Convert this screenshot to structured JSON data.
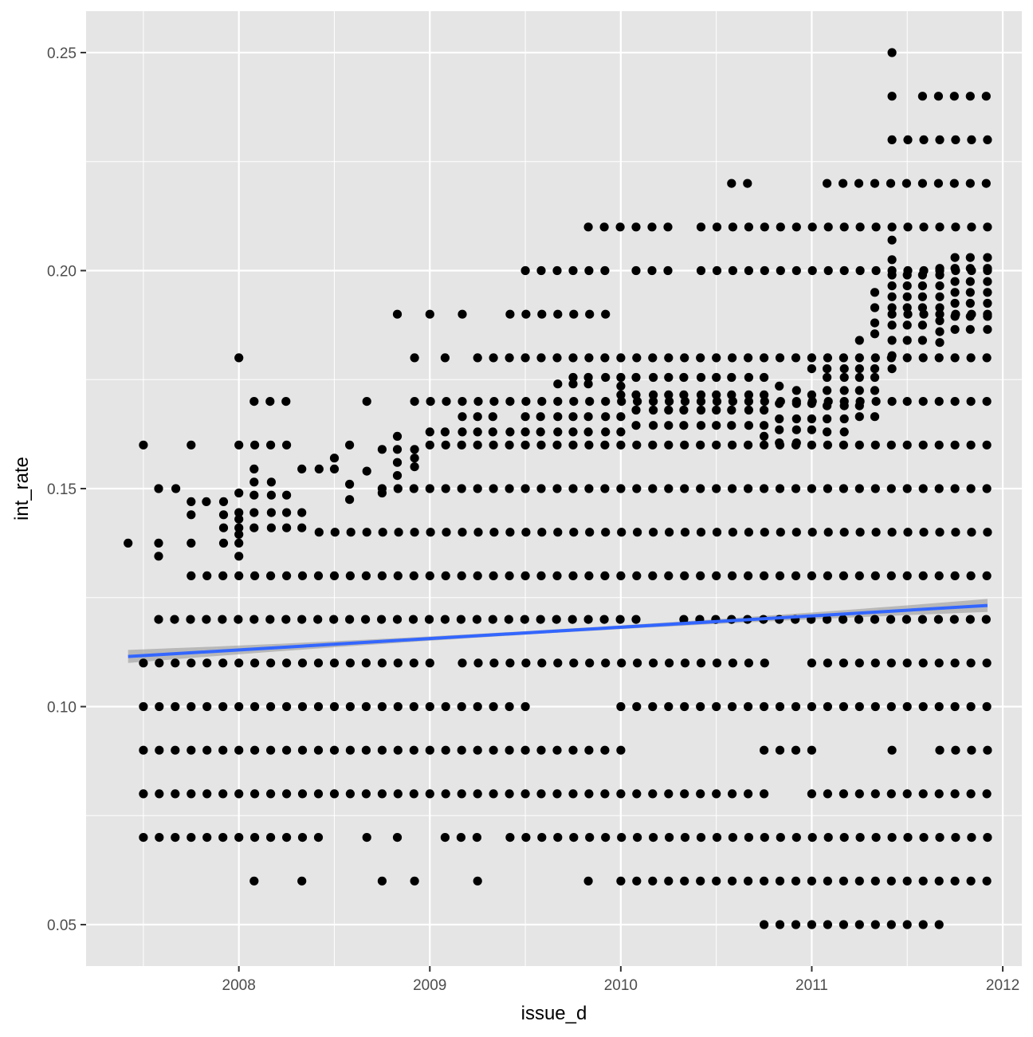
{
  "chart_data": {
    "type": "scatter",
    "xlabel": "issue_d",
    "ylabel": "int_rate",
    "xlim": [
      2007.2,
      2012.1
    ],
    "ylim": [
      0.0405,
      0.2595
    ],
    "x_ticks": [
      2008,
      2009,
      2010,
      2011,
      2012
    ],
    "x_tick_labels": [
      "2008",
      "2009",
      "2010",
      "2011",
      "2012"
    ],
    "y_ticks": [
      0.05,
      0.1,
      0.15,
      0.2,
      0.25
    ],
    "y_tick_labels": [
      "0.05",
      "0.10",
      "0.15",
      "0.20",
      "0.25"
    ],
    "grid": true,
    "point_color": "#000000",
    "panel_background": "#e5e5e5",
    "grid_color": "#ffffff",
    "trend_line": {
      "method": "linear fit with confidence band",
      "color": "#3366ff",
      "band_color": "#999999",
      "x": [
        2007.42,
        2011.92
      ],
      "y": [
        0.1115,
        0.1232
      ]
    },
    "points": {
      "note_x_unit": "decimal year",
      "row_rates": [
        0.05,
        0.06,
        0.07,
        0.08,
        0.09,
        0.1,
        0.11,
        0.12,
        0.13,
        0.14,
        0.15,
        0.16,
        0.17,
        0.18,
        0.19,
        0.2,
        0.21,
        0.22,
        0.23,
        0.24,
        0.25
      ],
      "x_ranges_by_rate": {
        "0.05": [
          [
            2010.75,
            2011.67
          ]
        ],
        "0.06": [
          [
            2008.08,
            2008.08
          ],
          [
            2008.33,
            2008.33
          ],
          [
            2008.75,
            2008.75
          ],
          [
            2008.92,
            2008.92
          ],
          [
            2009.25,
            2009.25
          ],
          [
            2009.83,
            2009.83
          ],
          [
            2010.0,
            2011.92
          ]
        ],
        "0.07": [
          [
            2007.5,
            2008.42
          ],
          [
            2008.67,
            2008.67
          ],
          [
            2008.83,
            2008.83
          ],
          [
            2009.08,
            2009.25
          ],
          [
            2009.42,
            2011.92
          ]
        ],
        "0.08": [
          [
            2007.5,
            2010.75
          ],
          [
            2011.0,
            2011.92
          ]
        ],
        "0.09": [
          [
            2007.5,
            2010.0
          ],
          [
            2010.75,
            2011.0
          ],
          [
            2011.42,
            2011.42
          ],
          [
            2011.67,
            2011.92
          ]
        ],
        "0.10": [
          [
            2007.5,
            2009.58
          ],
          [
            2010.0,
            2011.92
          ]
        ],
        "0.11": [
          [
            2007.5,
            2009.0
          ],
          [
            2009.17,
            2010.83
          ],
          [
            2011.0,
            2011.92
          ]
        ],
        "0.12": [
          [
            2007.58,
            2010.08
          ],
          [
            2010.33,
            2011.92
          ]
        ],
        "0.13": [
          [
            2007.75,
            2011.92
          ]
        ],
        "0.14": [
          [
            2008.42,
            2011.92
          ]
        ],
        "0.15": [
          [
            2008.75,
            2011.92
          ]
        ],
        "0.16": [
          [
            2007.5,
            2007.5
          ],
          [
            2007.75,
            2007.75
          ],
          [
            2008.0,
            2008.25
          ],
          [
            2008.58,
            2008.58
          ],
          [
            2009.0,
            2011.92
          ]
        ],
        "0.17": [
          [
            2008.08,
            2008.25
          ],
          [
            2008.67,
            2008.67
          ],
          [
            2008.92,
            2011.42
          ],
          [
            2011.5,
            2011.92
          ]
        ],
        "0.18": [
          [
            2008.0,
            2008.0
          ],
          [
            2008.92,
            2008.92
          ],
          [
            2009.08,
            2009.08
          ],
          [
            2009.25,
            2011.92
          ]
        ],
        "0.19": [
          [
            2008.83,
            2008.83
          ],
          [
            2009.0,
            2009.0
          ],
          [
            2009.17,
            2009.17
          ],
          [
            2009.42,
            2010.0
          ],
          [
            2011.42,
            2011.92
          ]
        ],
        "0.20": [
          [
            2009.5,
            2009.92
          ],
          [
            2010.08,
            2010.25
          ],
          [
            2010.42,
            2011.92
          ]
        ],
        "0.21": [
          [
            2009.83,
            2010.25
          ],
          [
            2010.42,
            2011.92
          ]
        ],
        "0.22": [
          [
            2010.58,
            2010.67
          ],
          [
            2011.08,
            2011.92
          ]
        ],
        "0.23": [
          [
            2011.42,
            2011.92
          ]
        ],
        "0.24": [
          [
            2011.42,
            2011.42
          ],
          [
            2011.58,
            2011.92
          ]
        ],
        "0.25": [
          [
            2011.42,
            2011.42
          ]
        ]
      },
      "extra_points": [
        {
          "x": 2007.42,
          "y": 0.1375
        },
        {
          "x": 2007.58,
          "y": 0.1375
        },
        {
          "x": 2007.58,
          "y": 0.1345
        },
        {
          "x": 2007.58,
          "y": 0.15
        },
        {
          "x": 2007.67,
          "y": 0.15
        },
        {
          "x": 2007.75,
          "y": 0.1375
        },
        {
          "x": 2007.75,
          "y": 0.144
        },
        {
          "x": 2007.75,
          "y": 0.147
        },
        {
          "x": 2007.83,
          "y": 0.147
        },
        {
          "x": 2007.92,
          "y": 0.147
        },
        {
          "x": 2007.92,
          "y": 0.144
        },
        {
          "x": 2007.92,
          "y": 0.141
        },
        {
          "x": 2007.92,
          "y": 0.1375
        },
        {
          "x": 2008.0,
          "y": 0.1345
        },
        {
          "x": 2008.0,
          "y": 0.1375
        },
        {
          "x": 2008.0,
          "y": 0.1395
        },
        {
          "x": 2008.0,
          "y": 0.141
        },
        {
          "x": 2008.0,
          "y": 0.143
        },
        {
          "x": 2008.0,
          "y": 0.1445
        },
        {
          "x": 2008.0,
          "y": 0.149
        },
        {
          "x": 2008.08,
          "y": 0.141
        },
        {
          "x": 2008.08,
          "y": 0.1445
        },
        {
          "x": 2008.08,
          "y": 0.1485
        },
        {
          "x": 2008.08,
          "y": 0.1515
        },
        {
          "x": 2008.08,
          "y": 0.1545
        },
        {
          "x": 2008.17,
          "y": 0.141
        },
        {
          "x": 2008.17,
          "y": 0.1445
        },
        {
          "x": 2008.17,
          "y": 0.1485
        },
        {
          "x": 2008.17,
          "y": 0.1515
        },
        {
          "x": 2008.25,
          "y": 0.141
        },
        {
          "x": 2008.25,
          "y": 0.1445
        },
        {
          "x": 2008.25,
          "y": 0.1485
        },
        {
          "x": 2008.33,
          "y": 0.141
        },
        {
          "x": 2008.33,
          "y": 0.1445
        },
        {
          "x": 2008.33,
          "y": 0.1545
        },
        {
          "x": 2008.42,
          "y": 0.1545
        },
        {
          "x": 2008.5,
          "y": 0.1545
        },
        {
          "x": 2008.5,
          "y": 0.157
        },
        {
          "x": 2008.58,
          "y": 0.1475
        },
        {
          "x": 2008.58,
          "y": 0.151
        },
        {
          "x": 2008.67,
          "y": 0.154
        },
        {
          "x": 2008.75,
          "y": 0.159
        },
        {
          "x": 2008.75,
          "y": 0.149
        },
        {
          "x": 2008.83,
          "y": 0.159
        },
        {
          "x": 2008.83,
          "y": 0.162
        },
        {
          "x": 2008.83,
          "y": 0.156
        },
        {
          "x": 2008.83,
          "y": 0.153
        },
        {
          "x": 2008.92,
          "y": 0.159
        },
        {
          "x": 2008.92,
          "y": 0.157
        },
        {
          "x": 2008.92,
          "y": 0.155
        },
        {
          "x": 2009.0,
          "y": 0.163
        },
        {
          "x": 2009.08,
          "y": 0.163
        },
        {
          "x": 2009.17,
          "y": 0.163
        },
        {
          "x": 2009.17,
          "y": 0.1665
        },
        {
          "x": 2009.25,
          "y": 0.163
        },
        {
          "x": 2009.25,
          "y": 0.1665
        },
        {
          "x": 2009.33,
          "y": 0.163
        },
        {
          "x": 2009.33,
          "y": 0.1665
        },
        {
          "x": 2009.42,
          "y": 0.163
        },
        {
          "x": 2009.5,
          "y": 0.163
        },
        {
          "x": 2009.5,
          "y": 0.1665
        },
        {
          "x": 2009.58,
          "y": 0.163
        },
        {
          "x": 2009.58,
          "y": 0.1665
        },
        {
          "x": 2009.67,
          "y": 0.163
        },
        {
          "x": 2009.67,
          "y": 0.1665
        },
        {
          "x": 2009.67,
          "y": 0.174
        },
        {
          "x": 2009.75,
          "y": 0.163
        },
        {
          "x": 2009.75,
          "y": 0.1665
        },
        {
          "x": 2009.75,
          "y": 0.1755
        },
        {
          "x": 2009.75,
          "y": 0.174
        },
        {
          "x": 2009.83,
          "y": 0.163
        },
        {
          "x": 2009.83,
          "y": 0.1665
        },
        {
          "x": 2009.83,
          "y": 0.1755
        },
        {
          "x": 2009.83,
          "y": 0.174
        },
        {
          "x": 2009.92,
          "y": 0.163
        },
        {
          "x": 2009.92,
          "y": 0.1665
        },
        {
          "x": 2009.92,
          "y": 0.1755
        },
        {
          "x": 2010.0,
          "y": 0.163
        },
        {
          "x": 2010.0,
          "y": 0.1665
        },
        {
          "x": 2010.0,
          "y": 0.1755
        },
        {
          "x": 2010.0,
          "y": 0.1715
        },
        {
          "x": 2010.0,
          "y": 0.1735
        },
        {
          "x": 2010.08,
          "y": 0.1645
        },
        {
          "x": 2010.08,
          "y": 0.168
        },
        {
          "x": 2010.08,
          "y": 0.1715
        },
        {
          "x": 2010.08,
          "y": 0.1755
        },
        {
          "x": 2010.17,
          "y": 0.1645
        },
        {
          "x": 2010.17,
          "y": 0.168
        },
        {
          "x": 2010.17,
          "y": 0.1715
        },
        {
          "x": 2010.17,
          "y": 0.1755
        },
        {
          "x": 2010.25,
          "y": 0.1645
        },
        {
          "x": 2010.25,
          "y": 0.168
        },
        {
          "x": 2010.25,
          "y": 0.1715
        },
        {
          "x": 2010.25,
          "y": 0.1755
        },
        {
          "x": 2010.33,
          "y": 0.1645
        },
        {
          "x": 2010.33,
          "y": 0.168
        },
        {
          "x": 2010.33,
          "y": 0.1715
        },
        {
          "x": 2010.33,
          "y": 0.1755
        },
        {
          "x": 2010.42,
          "y": 0.1645
        },
        {
          "x": 2010.42,
          "y": 0.168
        },
        {
          "x": 2010.42,
          "y": 0.1715
        },
        {
          "x": 2010.42,
          "y": 0.1755
        },
        {
          "x": 2010.5,
          "y": 0.1645
        },
        {
          "x": 2010.5,
          "y": 0.168
        },
        {
          "x": 2010.5,
          "y": 0.1715
        },
        {
          "x": 2010.5,
          "y": 0.1755
        },
        {
          "x": 2010.58,
          "y": 0.1645
        },
        {
          "x": 2010.58,
          "y": 0.168
        },
        {
          "x": 2010.58,
          "y": 0.1715
        },
        {
          "x": 2010.58,
          "y": 0.1755
        },
        {
          "x": 2010.67,
          "y": 0.1645
        },
        {
          "x": 2010.67,
          "y": 0.168
        },
        {
          "x": 2010.67,
          "y": 0.1715
        },
        {
          "x": 2010.67,
          "y": 0.1755
        },
        {
          "x": 2010.75,
          "y": 0.162
        },
        {
          "x": 2010.75,
          "y": 0.1645
        },
        {
          "x": 2010.75,
          "y": 0.168
        },
        {
          "x": 2010.75,
          "y": 0.1715
        },
        {
          "x": 2010.75,
          "y": 0.1755
        },
        {
          "x": 2010.83,
          "y": 0.1605
        },
        {
          "x": 2010.83,
          "y": 0.1635
        },
        {
          "x": 2010.83,
          "y": 0.166
        },
        {
          "x": 2010.83,
          "y": 0.1695
        },
        {
          "x": 2010.83,
          "y": 0.1735
        },
        {
          "x": 2010.92,
          "y": 0.1605
        },
        {
          "x": 2010.92,
          "y": 0.1635
        },
        {
          "x": 2010.92,
          "y": 0.166
        },
        {
          "x": 2010.92,
          "y": 0.1695
        },
        {
          "x": 2010.92,
          "y": 0.1725
        },
        {
          "x": 2011.0,
          "y": 0.1635
        },
        {
          "x": 2011.0,
          "y": 0.166
        },
        {
          "x": 2011.0,
          "y": 0.1695
        },
        {
          "x": 2011.0,
          "y": 0.1715
        },
        {
          "x": 2011.0,
          "y": 0.1775
        },
        {
          "x": 2011.08,
          "y": 0.163
        },
        {
          "x": 2011.08,
          "y": 0.166
        },
        {
          "x": 2011.08,
          "y": 0.169
        },
        {
          "x": 2011.08,
          "y": 0.1725
        },
        {
          "x": 2011.08,
          "y": 0.1755
        },
        {
          "x": 2011.08,
          "y": 0.1775
        },
        {
          "x": 2011.17,
          "y": 0.163
        },
        {
          "x": 2011.17,
          "y": 0.166
        },
        {
          "x": 2011.17,
          "y": 0.169
        },
        {
          "x": 2011.17,
          "y": 0.1725
        },
        {
          "x": 2011.17,
          "y": 0.1755
        },
        {
          "x": 2011.17,
          "y": 0.1775
        },
        {
          "x": 2011.25,
          "y": 0.1665
        },
        {
          "x": 2011.25,
          "y": 0.169
        },
        {
          "x": 2011.25,
          "y": 0.1725
        },
        {
          "x": 2011.25,
          "y": 0.1755
        },
        {
          "x": 2011.25,
          "y": 0.1775
        },
        {
          "x": 2011.25,
          "y": 0.184
        },
        {
          "x": 2011.33,
          "y": 0.1665
        },
        {
          "x": 2011.33,
          "y": 0.1725
        },
        {
          "x": 2011.33,
          "y": 0.1755
        },
        {
          "x": 2011.33,
          "y": 0.1775
        },
        {
          "x": 2011.33,
          "y": 0.1855
        },
        {
          "x": 2011.33,
          "y": 0.188
        },
        {
          "x": 2011.33,
          "y": 0.1915
        },
        {
          "x": 2011.33,
          "y": 0.195
        },
        {
          "x": 2011.42,
          "y": 0.1775
        },
        {
          "x": 2011.42,
          "y": 0.1805
        },
        {
          "x": 2011.42,
          "y": 0.184
        },
        {
          "x": 2011.42,
          "y": 0.1875
        },
        {
          "x": 2011.42,
          "y": 0.1915
        },
        {
          "x": 2011.42,
          "y": 0.194
        },
        {
          "x": 2011.42,
          "y": 0.1965
        },
        {
          "x": 2011.42,
          "y": 0.199
        },
        {
          "x": 2011.42,
          "y": 0.2025
        },
        {
          "x": 2011.42,
          "y": 0.207
        },
        {
          "x": 2011.5,
          "y": 0.184
        },
        {
          "x": 2011.5,
          "y": 0.1875
        },
        {
          "x": 2011.5,
          "y": 0.1915
        },
        {
          "x": 2011.5,
          "y": 0.194
        },
        {
          "x": 2011.5,
          "y": 0.1965
        },
        {
          "x": 2011.5,
          "y": 0.199
        },
        {
          "x": 2011.58,
          "y": 0.184
        },
        {
          "x": 2011.58,
          "y": 0.1875
        },
        {
          "x": 2011.58,
          "y": 0.1915
        },
        {
          "x": 2011.58,
          "y": 0.194
        },
        {
          "x": 2011.58,
          "y": 0.1965
        },
        {
          "x": 2011.58,
          "y": 0.199
        },
        {
          "x": 2011.67,
          "y": 0.1835
        },
        {
          "x": 2011.67,
          "y": 0.186
        },
        {
          "x": 2011.67,
          "y": 0.1885
        },
        {
          "x": 2011.67,
          "y": 0.1915
        },
        {
          "x": 2011.67,
          "y": 0.194
        },
        {
          "x": 2011.67,
          "y": 0.1965
        },
        {
          "x": 2011.67,
          "y": 0.199
        },
        {
          "x": 2011.67,
          "y": 0.2005
        },
        {
          "x": 2011.75,
          "y": 0.1865
        },
        {
          "x": 2011.75,
          "y": 0.1895
        },
        {
          "x": 2011.75,
          "y": 0.1925
        },
        {
          "x": 2011.75,
          "y": 0.195
        },
        {
          "x": 2011.75,
          "y": 0.1975
        },
        {
          "x": 2011.75,
          "y": 0.2005
        },
        {
          "x": 2011.75,
          "y": 0.203
        },
        {
          "x": 2011.83,
          "y": 0.1865
        },
        {
          "x": 2011.83,
          "y": 0.1895
        },
        {
          "x": 2011.83,
          "y": 0.1925
        },
        {
          "x": 2011.83,
          "y": 0.195
        },
        {
          "x": 2011.83,
          "y": 0.1975
        },
        {
          "x": 2011.83,
          "y": 0.2005
        },
        {
          "x": 2011.83,
          "y": 0.203
        },
        {
          "x": 2011.92,
          "y": 0.1865
        },
        {
          "x": 2011.92,
          "y": 0.1895
        },
        {
          "x": 2011.92,
          "y": 0.1925
        },
        {
          "x": 2011.92,
          "y": 0.195
        },
        {
          "x": 2011.92,
          "y": 0.1975
        },
        {
          "x": 2011.92,
          "y": 0.2005
        },
        {
          "x": 2011.92,
          "y": 0.203
        }
      ]
    }
  }
}
